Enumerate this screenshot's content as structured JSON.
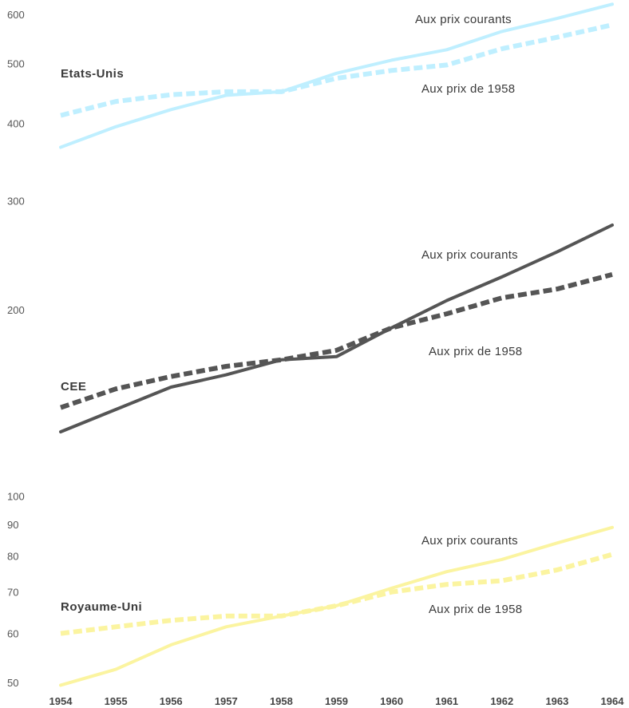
{
  "chart_data": {
    "type": "line",
    "y_scale": "log",
    "x": [
      1954,
      1955,
      1956,
      1957,
      1958,
      1959,
      1960,
      1961,
      1962,
      1963,
      1964
    ],
    "yticks": [
      50,
      60,
      70,
      80,
      90,
      100,
      200,
      300,
      400,
      500,
      600
    ],
    "series_names": [
      "Etats-Unis",
      "CEE",
      "Royaume-Uni"
    ],
    "annotations": {
      "current": "Aux prix courants",
      "constant": "Aux prix de 1958"
    },
    "series": [
      {
        "group": "Etats-Unis",
        "variant": "current",
        "style": "solid",
        "color": "#bfefff",
        "values": [
          366,
          395,
          421,
          444,
          450,
          482,
          506,
          526,
          563,
          591,
          623
        ]
      },
      {
        "group": "Etats-Unis",
        "variant": "constant",
        "style": "dashed",
        "color": "#bfefff",
        "values": [
          412,
          434,
          445,
          450,
          450,
          473,
          487,
          497,
          528,
          551,
          577
        ]
      },
      {
        "group": "CEE",
        "variant": "current",
        "style": "solid",
        "color": "#555555",
        "values": [
          127,
          138,
          150,
          157,
          166,
          168,
          187,
          207,
          226,
          248,
          274
        ]
      },
      {
        "group": "CEE",
        "variant": "constant",
        "style": "dashed",
        "color": "#555555",
        "values": [
          139,
          149,
          156,
          162,
          166,
          172,
          187,
          197,
          209,
          216,
          228
        ]
      },
      {
        "group": "Royaume-Uni",
        "variant": "current",
        "style": "solid",
        "color": "#fbf4a0",
        "values": [
          49.5,
          52.5,
          57.5,
          61.5,
          64,
          66.5,
          71,
          75.5,
          79,
          84,
          89
        ]
      },
      {
        "group": "Royaume-Uni",
        "variant": "constant",
        "style": "dashed",
        "color": "#fbf4a0",
        "values": [
          60,
          61.5,
          63,
          64,
          64,
          66.5,
          70,
          72,
          73,
          76,
          80.5
        ]
      }
    ]
  }
}
